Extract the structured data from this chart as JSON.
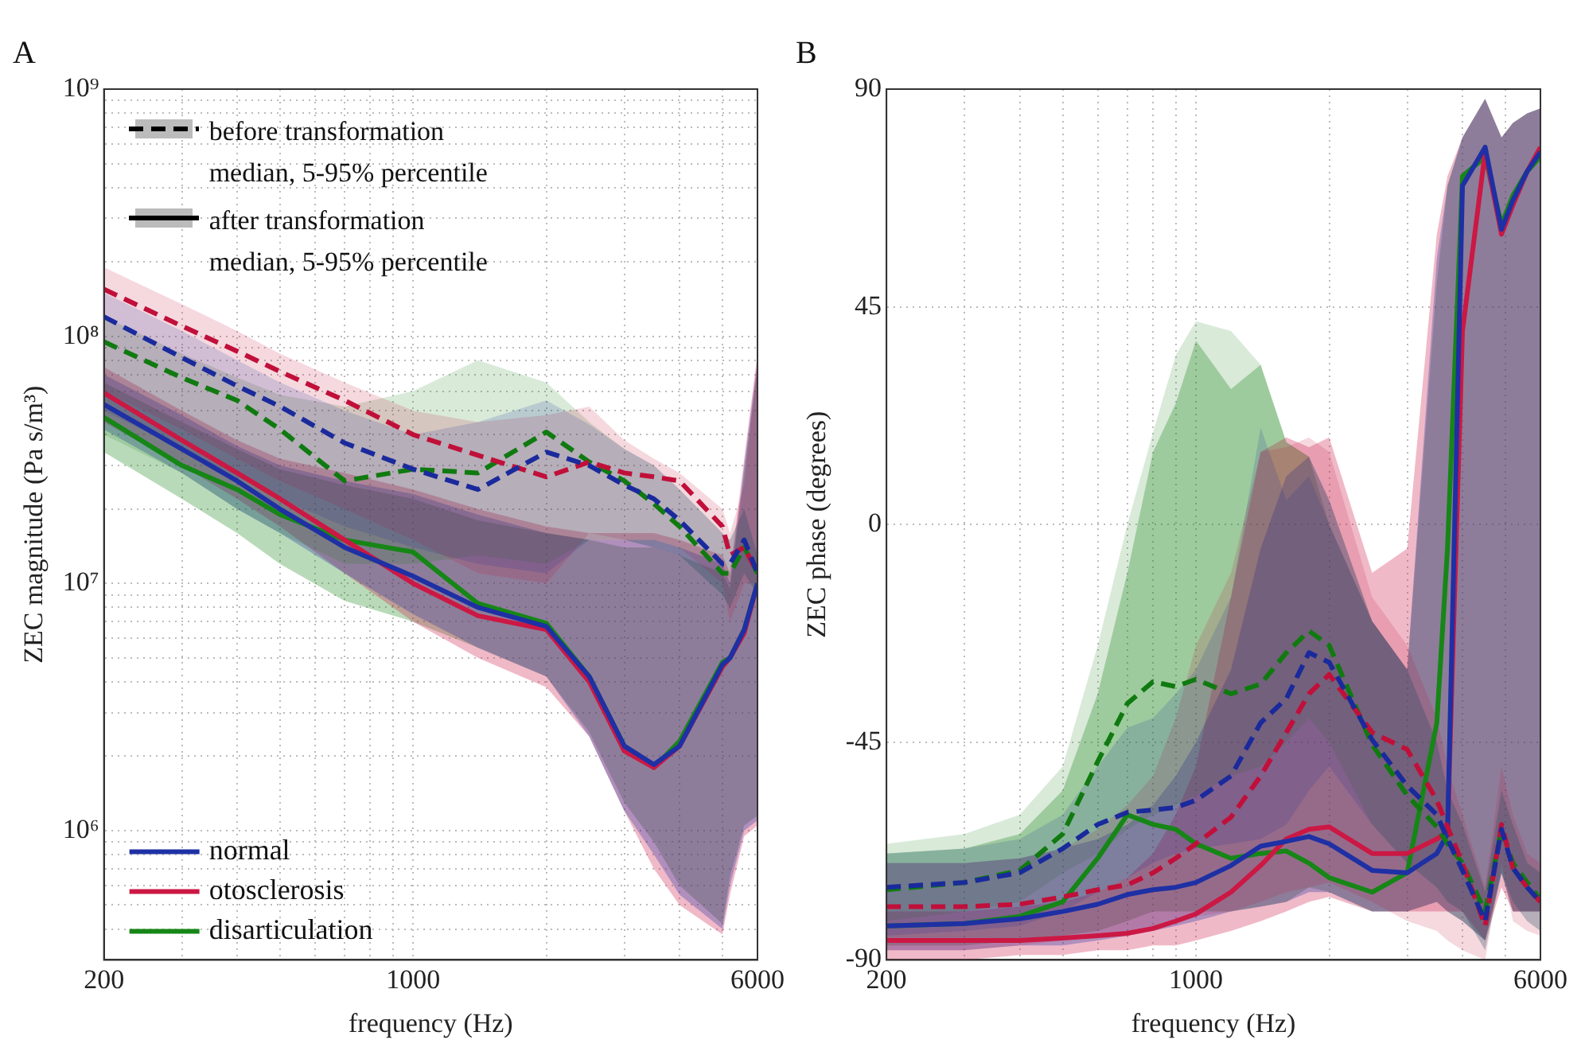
{
  "chart_data": [
    {
      "type": "line",
      "title": "A",
      "xlabel": "frequency (Hz)",
      "ylabel": "ZEC magnitude (Pa s/m³)",
      "log": "xy",
      "grid": true,
      "legend": "bottom left",
      "annotations": [
        "before transformation median, 5-95% percentile",
        "after transformation median, 5-95% percentile"
      ],
      "x": [
        200,
        300,
        400,
        500,
        700,
        1000,
        1400,
        2000,
        2500,
        3000,
        3500,
        4000,
        5000,
        5200,
        5600,
        6000
      ],
      "xlim": [
        200,
        6000
      ],
      "xticks": [
        200,
        {
          "value": 300,
          "label": null
        },
        {
          "value": 400,
          "label": null
        },
        {
          "value": 500,
          "label": null
        },
        {
          "value": 600,
          "label": null
        },
        {
          "value": 700,
          "label": null
        },
        {
          "value": 800,
          "label": null
        },
        {
          "value": 900,
          "label": null
        },
        1000,
        {
          "value": 2000,
          "label": null
        },
        {
          "value": 3000,
          "label": null
        },
        {
          "value": 4000,
          "label": null
        },
        {
          "value": 5000,
          "label": null
        },
        6000
      ],
      "ylim": [
        300000,
        1000000000
      ],
      "yticks": [
        {
          "value": 400000,
          "label": null
        },
        {
          "value": 500000,
          "label": null
        },
        {
          "value": 600000,
          "label": null
        },
        {
          "value": 700000,
          "label": null
        },
        {
          "value": 800000,
          "label": null
        },
        {
          "value": 900000,
          "label": null
        },
        {
          "value": 1000000,
          "label": "10⁶"
        },
        {
          "value": 2000000,
          "label": null
        },
        {
          "value": 3000000,
          "label": null
        },
        {
          "value": 4000000,
          "label": null
        },
        {
          "value": 5000000,
          "label": null
        },
        {
          "value": 6000000,
          "label": null
        },
        {
          "value": 7000000,
          "label": null
        },
        {
          "value": 8000000,
          "label": null
        },
        {
          "value": 9000000,
          "label": null
        },
        {
          "value": 10000000,
          "label": "10⁷"
        },
        {
          "value": 20000000,
          "label": null
        },
        {
          "value": 30000000,
          "label": null
        },
        {
          "value": 40000000,
          "label": null
        },
        {
          "value": 50000000,
          "label": null
        },
        {
          "value": 60000000,
          "label": null
        },
        {
          "value": 70000000,
          "label": null
        },
        {
          "value": 80000000,
          "label": null
        },
        {
          "value": 90000000,
          "label": null
        },
        {
          "value": 100000000,
          "label": "10⁸"
        },
        {
          "value": 200000000,
          "label": null
        },
        {
          "value": 300000000,
          "label": null
        },
        {
          "value": 400000000,
          "label": null
        },
        {
          "value": 500000000,
          "label": null
        },
        {
          "value": 600000000,
          "label": null
        },
        {
          "value": 700000000,
          "label": null
        },
        {
          "value": 800000000,
          "label": null
        },
        {
          "value": 900000000,
          "label": null
        },
        {
          "value": 1000000000,
          "label": "10⁹"
        }
      ],
      "series": [
        {
          "color": "#1a2a9c",
          "line_style": "dashed",
          "values": [
            120000000.0,
            82000000.0,
            63000000.0,
            52000000.0,
            37000000.0,
            29000000.0,
            24000000.0,
            34000000.0,
            30000000.0,
            25000000.0,
            22000000.0,
            18000000.0,
            12000000.0,
            12000000.0,
            15000000.0,
            11000000.0
          ],
          "upper": [
            150000000.0,
            105000000.0,
            80000000.0,
            65000000.0,
            50000000.0,
            40000000.0,
            45000000.0,
            55000000.0,
            44000000.0,
            35000000.0,
            30000000.0,
            24000000.0,
            16000000.0,
            15000000.0,
            20000000.0,
            13000000.0
          ],
          "lower": [
            50000000.0,
            35000000.0,
            27000000.0,
            22000000.0,
            17000000.0,
            14000000.0,
            12000000.0,
            11000000.0,
            15000000.0,
            15000000.0,
            14000000.0,
            13000000.0,
            9000000.0,
            8000000.0,
            11000000.0,
            9000000.0
          ]
        },
        {
          "color": "#c0103a",
          "line_style": "dashed",
          "values": [
            155000000.0,
            110000000.0,
            87000000.0,
            72000000.0,
            55000000.0,
            40000000.0,
            33000000.0,
            27000000.0,
            31000000.0,
            28000000.0,
            27000000.0,
            26000000.0,
            17000000.0,
            13000000.0,
            14000000.0,
            11000000.0
          ],
          "upper": [
            190000000.0,
            135000000.0,
            105000000.0,
            85000000.0,
            65000000.0,
            50000000.0,
            45000000.0,
            48000000.0,
            52000000.0,
            38000000.0,
            32000000.0,
            28000000.0,
            20000000.0,
            16000000.0,
            25000000.0,
            80000000.0
          ],
          "lower": [
            60000000.0,
            42000000.0,
            32000000.0,
            26000000.0,
            20000000.0,
            15000000.0,
            11000000.0,
            10000000.0,
            16000000.0,
            15000000.0,
            15000000.0,
            14000000.0,
            10000000.0,
            7000000.0,
            10000000.0,
            10000000.0
          ]
        },
        {
          "color": "#107a10",
          "line_style": "dashed",
          "values": [
            95000000.0,
            68000000.0,
            55000000.0,
            42000000.0,
            26000000.0,
            29000000.0,
            28000000.0,
            41000000.0,
            31000000.0,
            26000000.0,
            21000000.0,
            17000000.0,
            11000000.0,
            11000000.0,
            14000000.0,
            11000000.0
          ],
          "upper": [
            120000000.0,
            85000000.0,
            68000000.0,
            58000000.0,
            52000000.0,
            60000000.0,
            80000000.0,
            65000000.0,
            45000000.0,
            35000000.0,
            30000000.0,
            24000000.0,
            16000000.0,
            15000000.0,
            20000000.0,
            13000000.0
          ],
          "lower": [
            40000000.0,
            28000000.0,
            20000000.0,
            16000000.0,
            12000000.0,
            12000000.0,
            13000000.0,
            12000000.0,
            15000000.0,
            15000000.0,
            14000000.0,
            13000000.0,
            9000000.0,
            8000000.0,
            11000000.0,
            9000000.0
          ]
        },
        {
          "name": "normal",
          "color": "#1e30a4",
          "line_style": "solid",
          "values": [
            53000000.0,
            35000000.0,
            26000000.0,
            20000000.0,
            14000000.0,
            10700000.0,
            8000000.0,
            6700000.0,
            4200000.0,
            2200000.0,
            1850000.0,
            2200000.0,
            4700000.0,
            5000000.0,
            6500000.0,
            10000000.0
          ],
          "upper": [
            70000000.0,
            48000000.0,
            36000000.0,
            30000000.0,
            26000000.0,
            23000000.0,
            19000000.0,
            16000000.0,
            15000000.0,
            15000000.0,
            15000000.0,
            14000000.0,
            12000000.0,
            10000000.0,
            30000000.0,
            80000000.0
          ],
          "lower": [
            42000000.0,
            28000000.0,
            20000000.0,
            16000000.0,
            11000000.0,
            7500000.0,
            5500000.0,
            4200000.0,
            2400000.0,
            1200000.0,
            800000.0,
            550000.0,
            400000.0,
            600000.0,
            1000000.0,
            1100000.0
          ]
        },
        {
          "name": "otosclerosis",
          "color": "#cc1844",
          "line_style": "solid",
          "values": [
            59000000.0,
            38000000.0,
            28000000.0,
            22000000.0,
            15000000.0,
            10000000.0,
            7400000.0,
            6500000.0,
            4000000.0,
            2100000.0,
            1800000.0,
            2200000.0,
            4600000.0,
            5000000.0,
            6300000.0,
            10000000.0
          ],
          "upper": [
            75000000.0,
            50000000.0,
            38000000.0,
            32000000.0,
            28000000.0,
            24000000.0,
            20000000.0,
            17000000.0,
            16000000.0,
            16000000.0,
            16000000.0,
            15000000.0,
            13000000.0,
            11000000.0,
            32000000.0,
            85000000.0
          ],
          "lower": [
            45000000.0,
            30000000.0,
            22000000.0,
            17000000.0,
            11000000.0,
            7000000.0,
            5000000.0,
            3800000.0,
            2400000.0,
            1200000.0,
            700000.0,
            500000.0,
            380000.0,
            550000.0,
            950000.0,
            1050000.0
          ]
        },
        {
          "name": "disarticulation",
          "color": "#168616",
          "line_style": "solid",
          "values": [
            47000000.0,
            30000000.0,
            24000000.0,
            19000000.0,
            15000000.0,
            13400000.0,
            8300000.0,
            6900000.0,
            4200000.0,
            2200000.0,
            1800000.0,
            2300000.0,
            4800000.0,
            5000000.0,
            6500000.0,
            10000000.0
          ],
          "upper": [
            65000000.0,
            45000000.0,
            35000000.0,
            29000000.0,
            25000000.0,
            22000000.0,
            18000000.0,
            16000000.0,
            15000000.0,
            14000000.0,
            14000000.0,
            13000000.0,
            11000000.0,
            9500000.0,
            28000000.0,
            75000000.0
          ],
          "lower": [
            34000000.0,
            22000000.0,
            16000000.0,
            12000000.0,
            8500000.0,
            7000000.0,
            5500000.0,
            4200000.0,
            2500000.0,
            1300000.0,
            900000.0,
            600000.0,
            420000.0,
            650000.0,
            1050000.0,
            1150000.0
          ]
        }
      ]
    },
    {
      "type": "line",
      "title": "B",
      "xlabel": "frequency (Hz)",
      "ylabel": "ZEC phase (degrees)",
      "log": "x",
      "grid": true,
      "x": [
        200,
        300,
        400,
        500,
        600,
        700,
        800,
        900,
        1000,
        1200,
        1400,
        1600,
        1800,
        2000,
        2500,
        3000,
        3500,
        3700,
        4000,
        4500,
        4900,
        5200,
        5600,
        6000
      ],
      "xlim": [
        200,
        6000
      ],
      "xticks": [
        200,
        {
          "value": 300,
          "label": null
        },
        {
          "value": 400,
          "label": null
        },
        {
          "value": 500,
          "label": null
        },
        {
          "value": 600,
          "label": null
        },
        {
          "value": 700,
          "label": null
        },
        {
          "value": 800,
          "label": null
        },
        {
          "value": 900,
          "label": null
        },
        1000,
        {
          "value": 2000,
          "label": null
        },
        {
          "value": 3000,
          "label": null
        },
        {
          "value": 4000,
          "label": null
        },
        {
          "value": 5000,
          "label": null
        },
        6000
      ],
      "ylim": [
        -90,
        90
      ],
      "yticks": [
        -90,
        -45,
        0,
        45,
        90
      ],
      "series": [
        {
          "color": "#1a2a9c",
          "line_style": "dashed",
          "values": [
            -75,
            -74,
            -72,
            -67,
            -62,
            -59.5,
            -59,
            -58.5,
            -57,
            -52,
            -41,
            -36,
            -26.5,
            -28.5,
            -44.5,
            -54,
            -60,
            -65,
            -71.5,
            -82,
            -63,
            -71,
            -75,
            -78
          ],
          "upper": [
            -68,
            -67,
            -65,
            -60,
            -50,
            -42,
            -40,
            -35,
            -30,
            -15,
            20,
            5,
            10,
            0,
            -20,
            -30,
            -45,
            -55,
            -62,
            -76,
            -55,
            -62,
            -70,
            -72
          ],
          "lower": [
            -85,
            -84,
            -83,
            -80,
            -76,
            -73,
            -70,
            -68,
            -67,
            -66,
            -65,
            -62,
            -55,
            -50,
            -62,
            -70,
            -75,
            -78,
            -80,
            -88,
            -72,
            -78,
            -82,
            -84
          ]
        },
        {
          "color": "#c0103a",
          "line_style": "dashed",
          "values": [
            -79,
            -79,
            -78.5,
            -77,
            -75.5,
            -74.5,
            -72,
            -69,
            -66,
            -60.5,
            -52,
            -43,
            -35,
            -31,
            -43,
            -46.5,
            -57,
            -62.5,
            -70,
            -83,
            -62,
            -71,
            -75,
            -78
          ],
          "upper": [
            -70,
            -70,
            -69,
            -67,
            -63,
            -58,
            -52,
            -40,
            -25,
            -10,
            15,
            16,
            18,
            15,
            -15,
            -25,
            -40,
            -50,
            -60,
            -75,
            -50,
            -60,
            -68,
            -70
          ],
          "lower": [
            -88,
            -88,
            -87,
            -86,
            -85,
            -84,
            -83,
            -82,
            -81,
            -80,
            -78,
            -76,
            -75,
            -74,
            -78,
            -82,
            -84,
            -86,
            -88,
            -90,
            -70,
            -82,
            -84,
            -85
          ]
        },
        {
          "color": "#107a10",
          "line_style": "dashed",
          "values": [
            -75.5,
            -74,
            -71.5,
            -64,
            -49,
            -37,
            -32.5,
            -33.5,
            -32,
            -35,
            -33,
            -26.5,
            -22,
            -25,
            -45.5,
            -56,
            -62.5,
            -66,
            -70,
            -80,
            -63,
            -70,
            -74,
            -77.5
          ],
          "upper": [
            -66,
            -64,
            -60,
            -50,
            -25,
            0,
            19,
            35,
            42,
            40,
            33,
            17,
            14,
            5,
            -20,
            -30,
            -45,
            -55,
            -62,
            -76,
            -55,
            -62,
            -70,
            -72
          ],
          "lower": [
            -82,
            -80,
            -78,
            -72,
            -68,
            -63,
            -60,
            -58,
            -56,
            -52,
            -50,
            -45,
            -40,
            -45,
            -62,
            -70,
            -75,
            -78,
            -80,
            -88,
            -72,
            -78,
            -82,
            -84
          ]
        },
        {
          "color": "#1e30a4",
          "line_style": "solid",
          "values": [
            -83,
            -82.5,
            -81.5,
            -80,
            -78.5,
            -76.5,
            -75.5,
            -75,
            -74,
            -70.5,
            -66.5,
            -65.5,
            -64.5,
            -66,
            -71.5,
            -72,
            -68,
            -64,
            70,
            78,
            61,
            67,
            73,
            77
          ],
          "upper": [
            -70,
            -70,
            -69,
            -67,
            -65,
            -62,
            -58,
            -52,
            -45,
            -30,
            -5,
            10,
            14,
            5,
            -20,
            -30,
            55,
            70,
            80,
            88,
            80,
            83,
            85,
            86
          ],
          "lower": [
            -88,
            -88,
            -87,
            -87,
            -86,
            -85,
            -84,
            -83,
            -82,
            -80,
            -79,
            -78,
            -76,
            -76,
            -80,
            -80,
            -78,
            -80,
            -82,
            -86,
            -72,
            -80,
            -80,
            -80
          ]
        },
        {
          "color": "#cc1844",
          "line_style": "solid",
          "values": [
            -86,
            -86,
            -86,
            -85.5,
            -85,
            -84.5,
            -83.5,
            -82,
            -80.5,
            -76,
            -70.5,
            -65,
            -63,
            -62.5,
            -68,
            -68,
            -65,
            -63.5,
            40,
            77,
            60,
            66,
            73,
            78
          ],
          "upper": [
            -80,
            -80,
            -79,
            -78,
            -76,
            -73,
            -68,
            -60,
            -50,
            -15,
            15,
            18,
            16,
            18,
            -10,
            -5,
            60,
            72,
            80,
            88,
            80,
            83,
            85,
            86
          ],
          "lower": [
            -90,
            -90,
            -89,
            -89,
            -88,
            -88,
            -87,
            -87,
            -86,
            -84,
            -82,
            -80,
            -78,
            -77,
            -80,
            -80,
            -80,
            -80,
            -80,
            -86,
            -75,
            -80,
            -80,
            -80
          ]
        },
        {
          "color": "#168616",
          "line_style": "solid",
          "values": [
            -83,
            -82.5,
            -81,
            -78,
            -69,
            -60,
            -62,
            -63,
            -66,
            -69,
            -68,
            -67.5,
            -70,
            -73,
            -76,
            -72,
            -41,
            -5,
            72,
            76,
            62,
            68,
            73,
            76
          ],
          "upper": [
            -68,
            -67,
            -64,
            -55,
            -35,
            -10,
            15,
            25,
            38,
            28,
            33,
            17,
            14,
            0,
            -20,
            -30,
            50,
            70,
            80,
            88,
            80,
            83,
            85,
            86
          ],
          "lower": [
            -87,
            -87,
            -86,
            -85,
            -84,
            -82,
            -80,
            -80,
            -80,
            -80,
            -79,
            -78,
            -75,
            -76,
            -80,
            -80,
            -78,
            -80,
            -82,
            -86,
            -72,
            -80,
            -80,
            -80
          ]
        }
      ]
    }
  ]
}
